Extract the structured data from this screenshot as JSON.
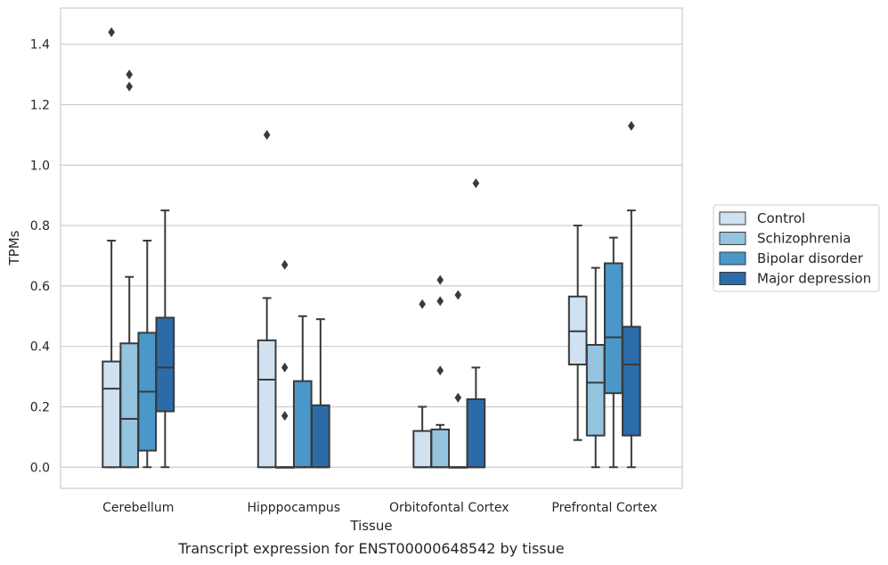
{
  "caption": "Transcript expression for ENST00000648542 by tissue",
  "chart_data": {
    "type": "boxplot",
    "xlabel": "Tissue",
    "ylabel": "TPMs",
    "ylim": [
      -0.07,
      1.52
    ],
    "yticks": [
      0.0,
      0.2,
      0.4,
      0.6,
      0.8,
      1.0,
      1.2,
      1.4
    ],
    "ytick_labels": [
      "0.0",
      "0.2",
      "0.4",
      "0.6",
      "0.8",
      "1.0",
      "1.2",
      "1.4"
    ],
    "grid": true,
    "legend_position": "right",
    "categories": [
      "Cerebellum",
      "Hipppocampus",
      "Orbitofontal Cortex",
      "Prefrontal Cortex"
    ],
    "series": [
      {
        "name": "Control",
        "color": "#d0e1f2",
        "boxes": [
          {
            "whislo": 0.0,
            "q1": 0.0,
            "med": 0.26,
            "q3": 0.35,
            "whishi": 0.75,
            "fliers": [
              1.44
            ]
          },
          {
            "whislo": 0.0,
            "q1": 0.0,
            "med": 0.29,
            "q3": 0.42,
            "whishi": 0.56,
            "fliers": [
              1.1
            ]
          },
          {
            "whislo": 0.0,
            "q1": 0.0,
            "med": 0.0,
            "q3": 0.12,
            "whishi": 0.2,
            "fliers": [
              0.54
            ]
          },
          {
            "whislo": 0.09,
            "q1": 0.34,
            "med": 0.45,
            "q3": 0.565,
            "whishi": 0.8,
            "fliers": []
          }
        ]
      },
      {
        "name": "Schizophrenia",
        "color": "#94c4df",
        "boxes": [
          {
            "whislo": 0.0,
            "q1": 0.0,
            "med": 0.16,
            "q3": 0.41,
            "whishi": 0.63,
            "fliers": [
              1.26,
              1.3
            ]
          },
          {
            "whislo": 0.0,
            "q1": 0.0,
            "med": 0.0,
            "q3": 0.0,
            "whishi": 0.0,
            "fliers": [
              0.17,
              0.33,
              0.67
            ]
          },
          {
            "whislo": 0.0,
            "q1": 0.0,
            "med": 0.0,
            "q3": 0.125,
            "whishi": 0.14,
            "fliers": [
              0.32,
              0.55,
              0.62
            ]
          },
          {
            "whislo": 0.0,
            "q1": 0.105,
            "med": 0.28,
            "q3": 0.405,
            "whishi": 0.66,
            "fliers": []
          }
        ]
      },
      {
        "name": "Bipolar disorder",
        "color": "#4a98c9",
        "boxes": [
          {
            "whislo": 0.0,
            "q1": 0.055,
            "med": 0.25,
            "q3": 0.445,
            "whishi": 0.75,
            "fliers": []
          },
          {
            "whislo": 0.0,
            "q1": 0.0,
            "med": 0.0,
            "q3": 0.285,
            "whishi": 0.5,
            "fliers": []
          },
          {
            "whislo": 0.0,
            "q1": 0.0,
            "med": 0.0,
            "q3": 0.0,
            "whishi": 0.0,
            "fliers": [
              0.23,
              0.57
            ]
          },
          {
            "whislo": 0.0,
            "q1": 0.245,
            "med": 0.43,
            "q3": 0.675,
            "whishi": 0.76,
            "fliers": []
          }
        ]
      },
      {
        "name": "Major depression",
        "color": "#2b6ca8",
        "boxes": [
          {
            "whislo": 0.0,
            "q1": 0.185,
            "med": 0.33,
            "q3": 0.495,
            "whishi": 0.85,
            "fliers": []
          },
          {
            "whislo": 0.0,
            "q1": 0.0,
            "med": 0.0,
            "q3": 0.205,
            "whishi": 0.49,
            "fliers": []
          },
          {
            "whislo": 0.0,
            "q1": 0.0,
            "med": 0.0,
            "q3": 0.225,
            "whishi": 0.33,
            "fliers": [
              0.94
            ]
          },
          {
            "whislo": 0.0,
            "q1": 0.105,
            "med": 0.34,
            "q3": 0.465,
            "whishi": 0.85,
            "fliers": [
              1.13
            ]
          }
        ]
      }
    ]
  }
}
